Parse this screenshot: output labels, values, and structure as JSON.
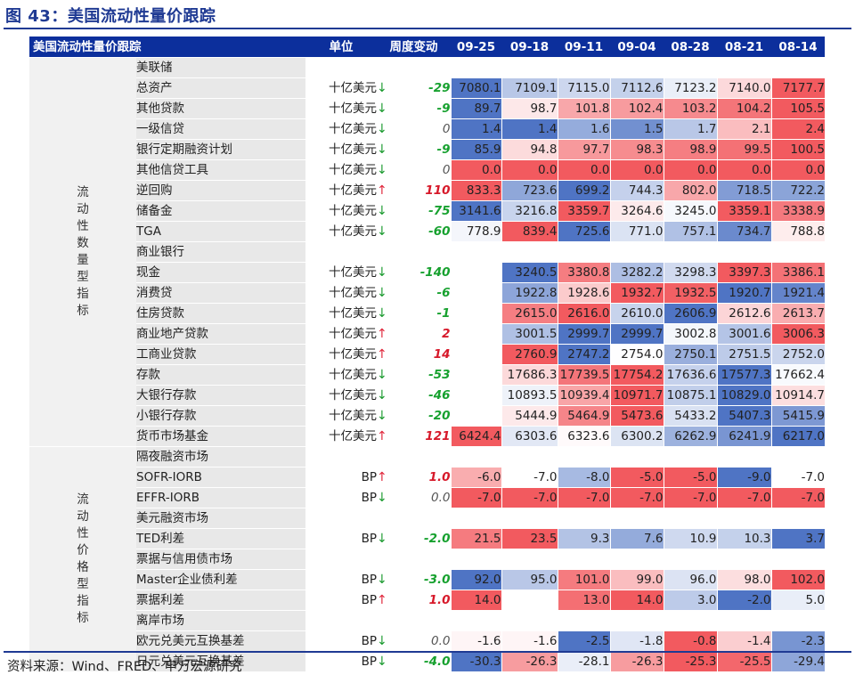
{
  "figure_title": "图 43：美国流动性量价跟踪",
  "source_note": "资料来源：Wind、FRED、申万宏源研究",
  "table": {
    "header": {
      "item": "美国流动性量价跟踪",
      "unit": "单位",
      "change": "周度变动",
      "dates": [
        "09-25",
        "09-18",
        "09-11",
        "09-04",
        "08-28",
        "08-21",
        "08-14"
      ]
    },
    "colors": {
      "header_bg": "#0c2f9c",
      "high": "#f25a5f",
      "low": "#4f74c4",
      "up_arrow": "#e0253a",
      "down_arrow": "#1a9a2e"
    },
    "categories": [
      {
        "label": "流动性数量型指标",
        "rows": [
          {
            "type": "group",
            "name": "美联储"
          },
          {
            "type": "data",
            "name": "总资产",
            "indent": 1,
            "unit": "十亿美元",
            "arrow": "↓",
            "change": "-29",
            "values": [
              "7080.1",
              "7109.1",
              "7115.0",
              "7112.6",
              "7123.2",
              "7140.0",
              "7177.7"
            ]
          },
          {
            "type": "data",
            "name": "其他贷款",
            "indent": 1,
            "unit": "十亿美元",
            "arrow": "↓",
            "change": "-9",
            "values": [
              "89.7",
              "98.7",
              "101.8",
              "102.4",
              "103.2",
              "104.2",
              "105.5"
            ]
          },
          {
            "type": "data",
            "name": "一级信贷",
            "indent": 2,
            "unit": "十亿美元",
            "arrow": "↓",
            "change": "0",
            "values": [
              "1.4",
              "1.4",
              "1.6",
              "1.5",
              "1.7",
              "2.1",
              "2.4"
            ]
          },
          {
            "type": "data",
            "name": "银行定期融资计划",
            "indent": 2,
            "unit": "十亿美元",
            "arrow": "↓",
            "change": "-9",
            "values": [
              "85.9",
              "94.8",
              "97.7",
              "98.3",
              "98.9",
              "99.5",
              "100.5"
            ]
          },
          {
            "type": "data",
            "name": "其他信贷工具",
            "indent": 2,
            "unit": "十亿美元",
            "arrow": "↓",
            "change": "0",
            "values": [
              "0.0",
              "0.0",
              "0.0",
              "0.0",
              "0.0",
              "0.0",
              "0.0"
            ]
          },
          {
            "type": "data",
            "name": "逆回购",
            "indent": 1,
            "unit": "十亿美元",
            "arrow": "↑",
            "change": "110",
            "values": [
              "833.3",
              "723.6",
              "699.2",
              "744.3",
              "802.0",
              "718.5",
              "722.2"
            ]
          },
          {
            "type": "data",
            "name": "储备金",
            "indent": 1,
            "unit": "十亿美元",
            "arrow": "↓",
            "change": "-75",
            "values": [
              "3141.6",
              "3216.8",
              "3359.7",
              "3264.6",
              "3245.0",
              "3359.1",
              "3338.9"
            ]
          },
          {
            "type": "data",
            "name": "TGA",
            "indent": 1,
            "unit": "十亿美元",
            "arrow": "↓",
            "change": "-60",
            "values": [
              "778.9",
              "839.4",
              "725.6",
              "771.0",
              "757.1",
              "734.7",
              "788.8"
            ]
          },
          {
            "type": "group",
            "name": "商业银行"
          },
          {
            "type": "data",
            "name": "现金",
            "indent": 1,
            "unit": "十亿美元",
            "arrow": "↓",
            "change": "-140",
            "values": [
              "",
              "3240.5",
              "3380.8",
              "3282.2",
              "3298.3",
              "3397.3",
              "3386.1"
            ]
          },
          {
            "type": "data",
            "name": "消费贷",
            "indent": 1,
            "unit": "十亿美元",
            "arrow": "↓",
            "change": "-6",
            "values": [
              "",
              "1922.8",
              "1928.6",
              "1932.7",
              "1932.5",
              "1920.7",
              "1921.4"
            ]
          },
          {
            "type": "data",
            "name": "住房贷款",
            "indent": 1,
            "unit": "十亿美元",
            "arrow": "↓",
            "change": "-1",
            "values": [
              "",
              "2615.0",
              "2616.0",
              "2610.0",
              "2606.9",
              "2612.6",
              "2613.7"
            ]
          },
          {
            "type": "data",
            "name": "商业地产贷款",
            "indent": 1,
            "unit": "十亿美元",
            "arrow": "↑",
            "change": "2",
            "values": [
              "",
              "3001.5",
              "2999.7",
              "2999.7",
              "3002.8",
              "3001.6",
              "3006.3"
            ]
          },
          {
            "type": "data",
            "name": "工商业贷款",
            "indent": 1,
            "unit": "十亿美元",
            "arrow": "↑",
            "change": "14",
            "values": [
              "",
              "2760.9",
              "2747.2",
              "2754.0",
              "2750.1",
              "2751.5",
              "2752.0"
            ]
          },
          {
            "type": "data",
            "name": "存款",
            "indent": 1,
            "unit": "十亿美元",
            "arrow": "↓",
            "change": "-53",
            "values": [
              "",
              "17686.3",
              "17739.5",
              "17754.2",
              "17636.6",
              "17577.3",
              "17662.4"
            ]
          },
          {
            "type": "data",
            "name": "大银行存款",
            "indent": 2,
            "unit": "十亿美元",
            "arrow": "↓",
            "change": "-46",
            "values": [
              "",
              "10893.5",
              "10939.4",
              "10971.7",
              "10875.1",
              "10829.0",
              "10914.7"
            ]
          },
          {
            "type": "data",
            "name": "小银行存款",
            "indent": 2,
            "unit": "十亿美元",
            "arrow": "↓",
            "change": "-20",
            "values": [
              "",
              "5444.9",
              "5464.9",
              "5473.6",
              "5433.2",
              "5407.3",
              "5415.9"
            ]
          },
          {
            "type": "data",
            "name": "货币市场基金",
            "indent": 0,
            "unit": "十亿美元",
            "arrow": "↑",
            "change": "121",
            "values": [
              "6424.4",
              "6303.6",
              "6323.6",
              "6300.2",
              "6262.9",
              "6241.9",
              "6217.0"
            ]
          }
        ]
      },
      {
        "label": "流动性价格型指标",
        "rows": [
          {
            "type": "group",
            "name": "隔夜融资市场"
          },
          {
            "type": "data",
            "name": "SOFR-IORB",
            "indent": 1,
            "unit": "BP",
            "arrow": "↑",
            "change": "1.0",
            "values": [
              "-6.0",
              "-7.0",
              "-8.0",
              "-5.0",
              "-5.0",
              "-9.0",
              "-7.0"
            ]
          },
          {
            "type": "data",
            "name": "EFFR-IORB",
            "indent": 1,
            "unit": "BP",
            "arrow": "↓",
            "change": "0.0",
            "values": [
              "-7.0",
              "-7.0",
              "-7.0",
              "-7.0",
              "-7.0",
              "-7.0",
              "-7.0"
            ]
          },
          {
            "type": "group",
            "name": "美元融资市场"
          },
          {
            "type": "data",
            "name": "TED利差",
            "indent": 1,
            "unit": "BP",
            "arrow": "↓",
            "change": "-2.0",
            "values": [
              "21.5",
              "23.5",
              "9.3",
              "7.6",
              "10.9",
              "10.3",
              "3.7"
            ]
          },
          {
            "type": "group",
            "name": "票据与信用债市场"
          },
          {
            "type": "data",
            "name": "Master企业债利差",
            "indent": 1,
            "unit": "BP",
            "arrow": "↓",
            "change": "-3.0",
            "values": [
              "92.0",
              "95.0",
              "101.0",
              "99.0",
              "96.0",
              "98.0",
              "102.0"
            ]
          },
          {
            "type": "data",
            "name": "票据利差",
            "indent": 1,
            "unit": "BP",
            "arrow": "↑",
            "change": "1.0",
            "values": [
              "14.0",
              "",
              "13.0",
              "14.0",
              "3.0",
              "-2.0",
              "5.0"
            ]
          },
          {
            "type": "group",
            "name": "离岸市场"
          },
          {
            "type": "data",
            "name": "欧元兑美元互换基差",
            "indent": 1,
            "unit": "BP",
            "arrow": "↓",
            "change": "0.0",
            "values": [
              "-1.6",
              "-1.6",
              "-2.5",
              "-1.8",
              "-0.8",
              "-1.4",
              "-2.3"
            ]
          },
          {
            "type": "data",
            "name": "日元兑美元互换基差",
            "indent": 1,
            "unit": "BP",
            "arrow": "↓",
            "change": "-4.0",
            "values": [
              "-30.3",
              "-26.3",
              "-28.1",
              "-26.3",
              "-25.3",
              "-25.5",
              "-29.4"
            ]
          }
        ]
      }
    ]
  }
}
